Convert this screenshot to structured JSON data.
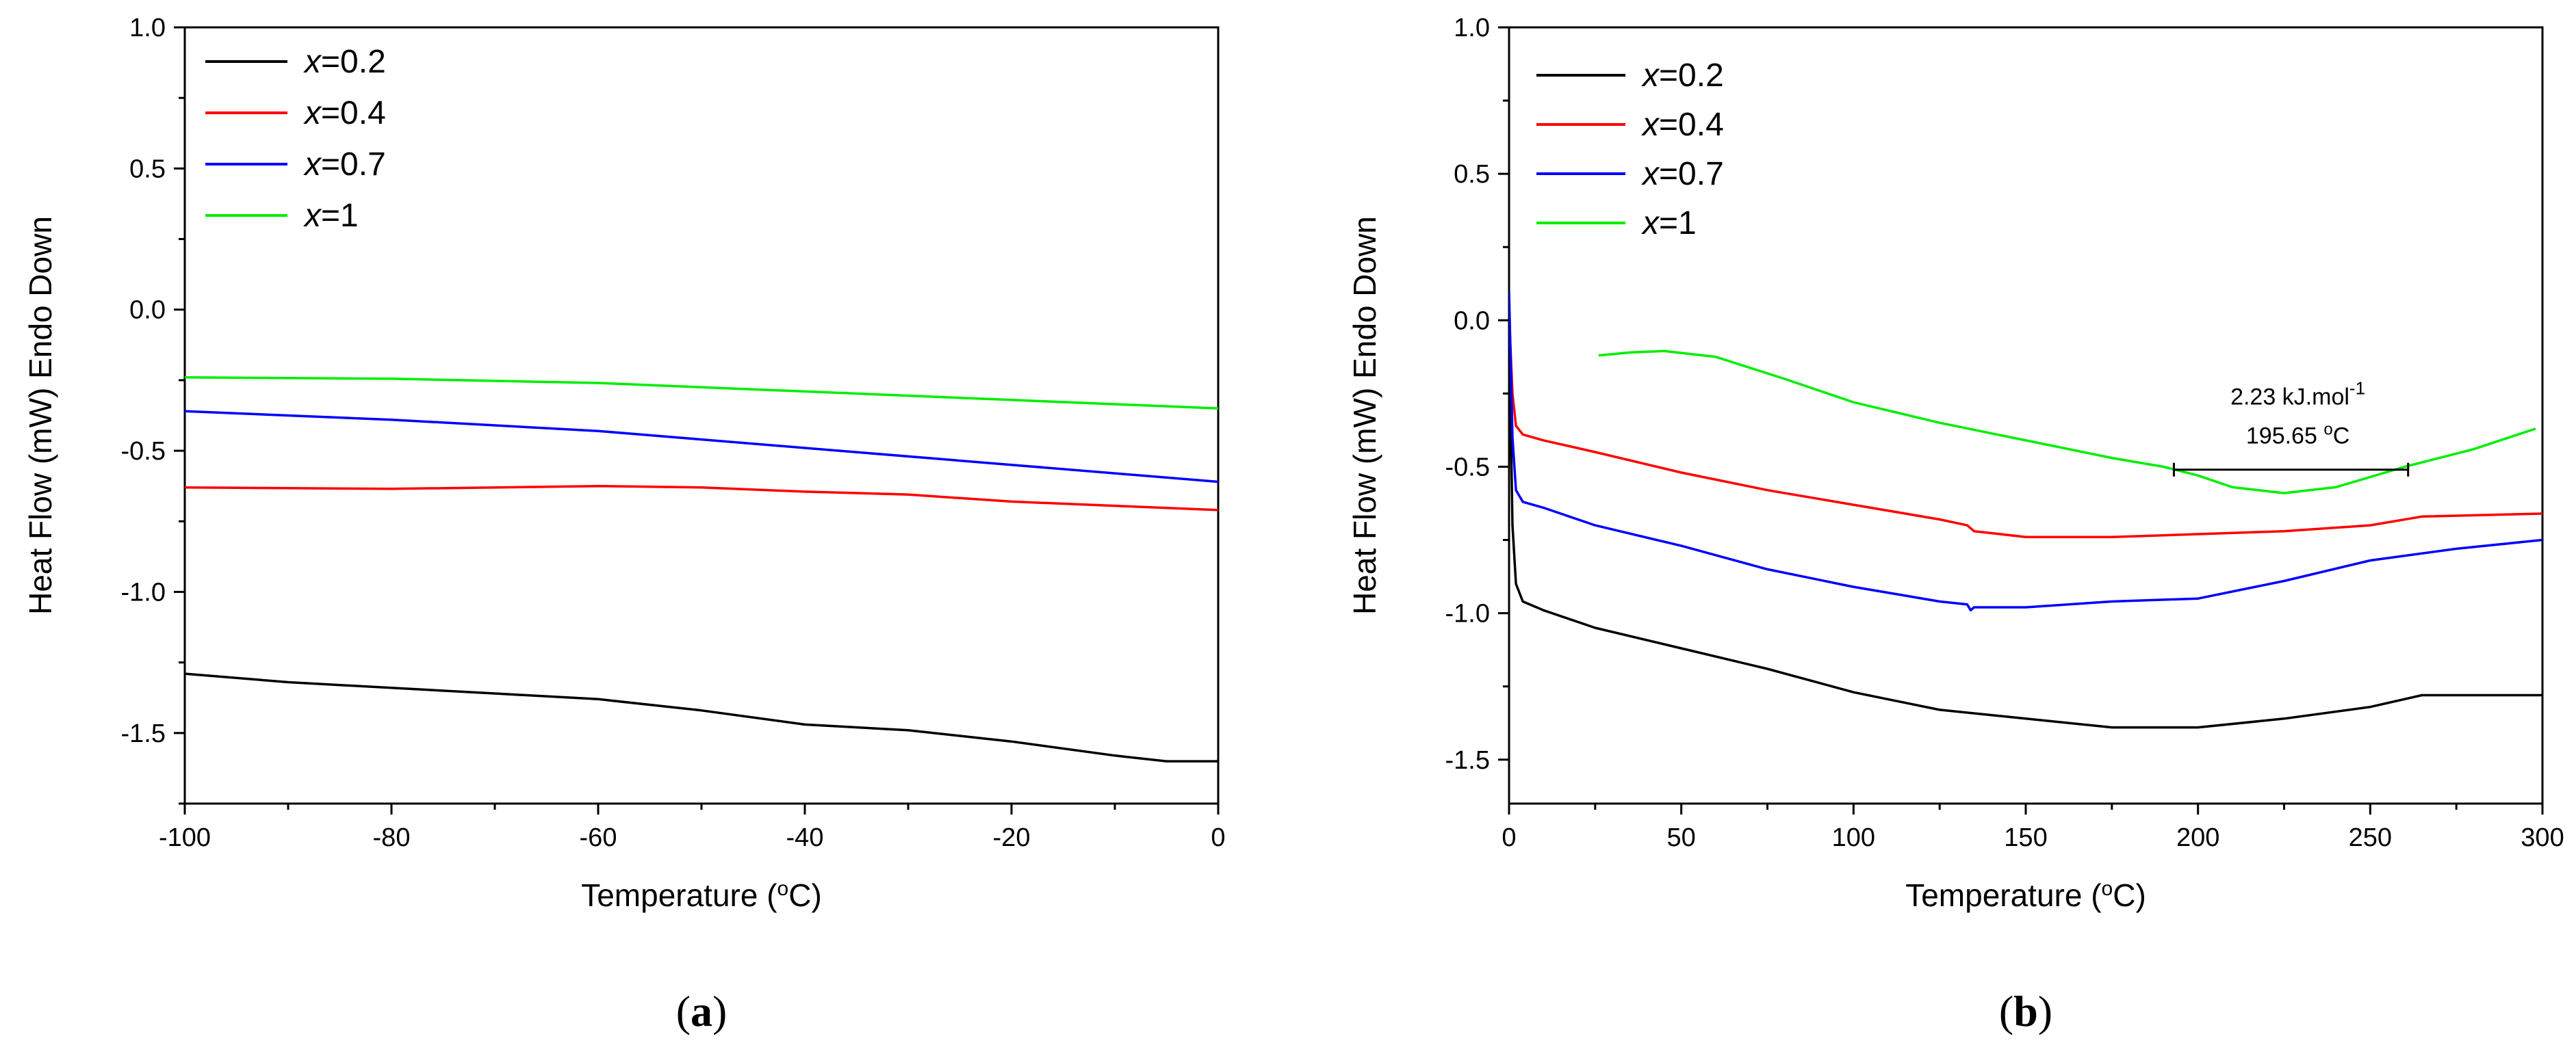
{
  "chart_data": [
    {
      "type": "line",
      "panel_label": "a",
      "xlabel": "Temperature (",
      "xlabel_unit": "o",
      "xlabel_tail": "C)",
      "ylabel": "Heat Flow (mW) Endo Down",
      "xlim": [
        -100,
        0
      ],
      "ylim": [
        -1.75,
        1.0
      ],
      "xticks": [
        "-100",
        "-80",
        "-60",
        "-40",
        "-20",
        "0"
      ],
      "yticks": [
        "1.0",
        "0.5",
        "0.0",
        "-0.5",
        "-1.0",
        "-1.5"
      ],
      "grid": false,
      "legend_position": "top-left",
      "series": [
        {
          "name": "x=0.2",
          "name_var": "x",
          "name_val": "=0.2",
          "color": "#000000",
          "points": [
            [
              -100,
              -1.29
            ],
            [
              -90,
              -1.32
            ],
            [
              -80,
              -1.34
            ],
            [
              -70,
              -1.36
            ],
            [
              -60,
              -1.38
            ],
            [
              -50,
              -1.42
            ],
            [
              -40,
              -1.47
            ],
            [
              -30,
              -1.49
            ],
            [
              -20,
              -1.53
            ],
            [
              -10,
              -1.58
            ],
            [
              -5,
              -1.6
            ],
            [
              0,
              -1.6
            ]
          ]
        },
        {
          "name": "x=0.4",
          "name_var": "x",
          "name_val": "=0.4",
          "color": "#ff0000",
          "points": [
            [
              -100,
              -0.63
            ],
            [
              -80,
              -0.635
            ],
            [
              -60,
              -0.625
            ],
            [
              -50,
              -0.63
            ],
            [
              -40,
              -0.645
            ],
            [
              -30,
              -0.655
            ],
            [
              -20,
              -0.68
            ],
            [
              -10,
              -0.695
            ],
            [
              0,
              -0.71
            ]
          ]
        },
        {
          "name": "x=0.7",
          "name_var": "x",
          "name_val": "=0.7",
          "color": "#0000ff",
          "points": [
            [
              -100,
              -0.36
            ],
            [
              -80,
              -0.39
            ],
            [
              -60,
              -0.43
            ],
            [
              -40,
              -0.49
            ],
            [
              -20,
              -0.55
            ],
            [
              0,
              -0.61
            ]
          ]
        },
        {
          "name": "x=1",
          "name_var": "x",
          "name_val": "=1",
          "color": "#00ee00",
          "points": [
            [
              -100,
              -0.24
            ],
            [
              -80,
              -0.245
            ],
            [
              -60,
              -0.26
            ],
            [
              -40,
              -0.29
            ],
            [
              -20,
              -0.32
            ],
            [
              0,
              -0.35
            ]
          ]
        }
      ]
    },
    {
      "type": "line",
      "panel_label": "b",
      "xlabel": "Temperature (",
      "xlabel_unit": "o",
      "xlabel_tail": "C)",
      "ylabel": "Heat Flow (mW) Endo Down",
      "xlim": [
        0,
        300
      ],
      "ylim": [
        -1.65,
        1.0
      ],
      "xticks": [
        "0",
        "50",
        "100",
        "150",
        "200",
        "250",
        "300"
      ],
      "yticks": [
        "1.0",
        "0.5",
        "0.0",
        "-0.5",
        "-1.0",
        "-1.5"
      ],
      "grid": false,
      "legend_position": "top-left",
      "annotation": {
        "line1": "2.23 kJ.mol",
        "line1_sup": "-1",
        "line2": "195.65 ",
        "line2_sup": "o",
        "line2_tail": "C",
        "bar_from": 193,
        "bar_to": 261,
        "bar_y": -0.51
      },
      "series": [
        {
          "name": "x=0.2",
          "name_var": "x",
          "name_val": "=0.2",
          "color": "#000000",
          "points": [
            [
              0,
              0.08
            ],
            [
              0.5,
              -0.35
            ],
            [
              1,
              -0.7
            ],
            [
              2,
              -0.9
            ],
            [
              4,
              -0.96
            ],
            [
              10,
              -0.99
            ],
            [
              25,
              -1.05
            ],
            [
              50,
              -1.12
            ],
            [
              75,
              -1.19
            ],
            [
              100,
              -1.27
            ],
            [
              125,
              -1.33
            ],
            [
              150,
              -1.36
            ],
            [
              175,
              -1.39
            ],
            [
              200,
              -1.39
            ],
            [
              225,
              -1.36
            ],
            [
              250,
              -1.32
            ],
            [
              265,
              -1.28
            ],
            [
              280,
              -1.28
            ],
            [
              300,
              -1.28
            ]
          ]
        },
        {
          "name": "x=0.4",
          "name_var": "x",
          "name_val": "=0.4",
          "color": "#ff0000",
          "points": [
            [
              0,
              0.02
            ],
            [
              1,
              -0.25
            ],
            [
              2,
              -0.36
            ],
            [
              4,
              -0.39
            ],
            [
              10,
              -0.41
            ],
            [
              25,
              -0.45
            ],
            [
              50,
              -0.52
            ],
            [
              75,
              -0.58
            ],
            [
              100,
              -0.63
            ],
            [
              125,
              -0.68
            ],
            [
              133,
              -0.7
            ],
            [
              135,
              -0.72
            ],
            [
              150,
              -0.74
            ],
            [
              175,
              -0.74
            ],
            [
              200,
              -0.73
            ],
            [
              225,
              -0.72
            ],
            [
              250,
              -0.7
            ],
            [
              265,
              -0.67
            ],
            [
              300,
              -0.66
            ]
          ]
        },
        {
          "name": "x=0.7",
          "name_var": "x",
          "name_val": "=0.7",
          "color": "#0000ff",
          "points": [
            [
              0,
              0.1
            ],
            [
              1,
              -0.4
            ],
            [
              2,
              -0.58
            ],
            [
              4,
              -0.62
            ],
            [
              10,
              -0.64
            ],
            [
              25,
              -0.7
            ],
            [
              50,
              -0.77
            ],
            [
              75,
              -0.85
            ],
            [
              100,
              -0.91
            ],
            [
              125,
              -0.96
            ],
            [
              133,
              -0.97
            ],
            [
              134,
              -0.99
            ],
            [
              135,
              -0.98
            ],
            [
              150,
              -0.98
            ],
            [
              175,
              -0.96
            ],
            [
              200,
              -0.95
            ],
            [
              225,
              -0.89
            ],
            [
              250,
              -0.82
            ],
            [
              275,
              -0.78
            ],
            [
              300,
              -0.75
            ]
          ]
        },
        {
          "name": "x=1",
          "name_var": "x",
          "name_val": "=1",
          "color": "#00ee00",
          "points": [
            [
              26,
              -0.12
            ],
            [
              35,
              -0.11
            ],
            [
              45,
              -0.105
            ],
            [
              60,
              -0.125
            ],
            [
              80,
              -0.2
            ],
            [
              100,
              -0.28
            ],
            [
              125,
              -0.35
            ],
            [
              150,
              -0.41
            ],
            [
              175,
              -0.47
            ],
            [
              190,
              -0.5
            ],
            [
              200,
              -0.53
            ],
            [
              210,
              -0.57
            ],
            [
              225,
              -0.59
            ],
            [
              240,
              -0.57
            ],
            [
              260,
              -0.5
            ],
            [
              280,
              -0.44
            ],
            [
              298,
              -0.37
            ]
          ]
        }
      ]
    }
  ]
}
